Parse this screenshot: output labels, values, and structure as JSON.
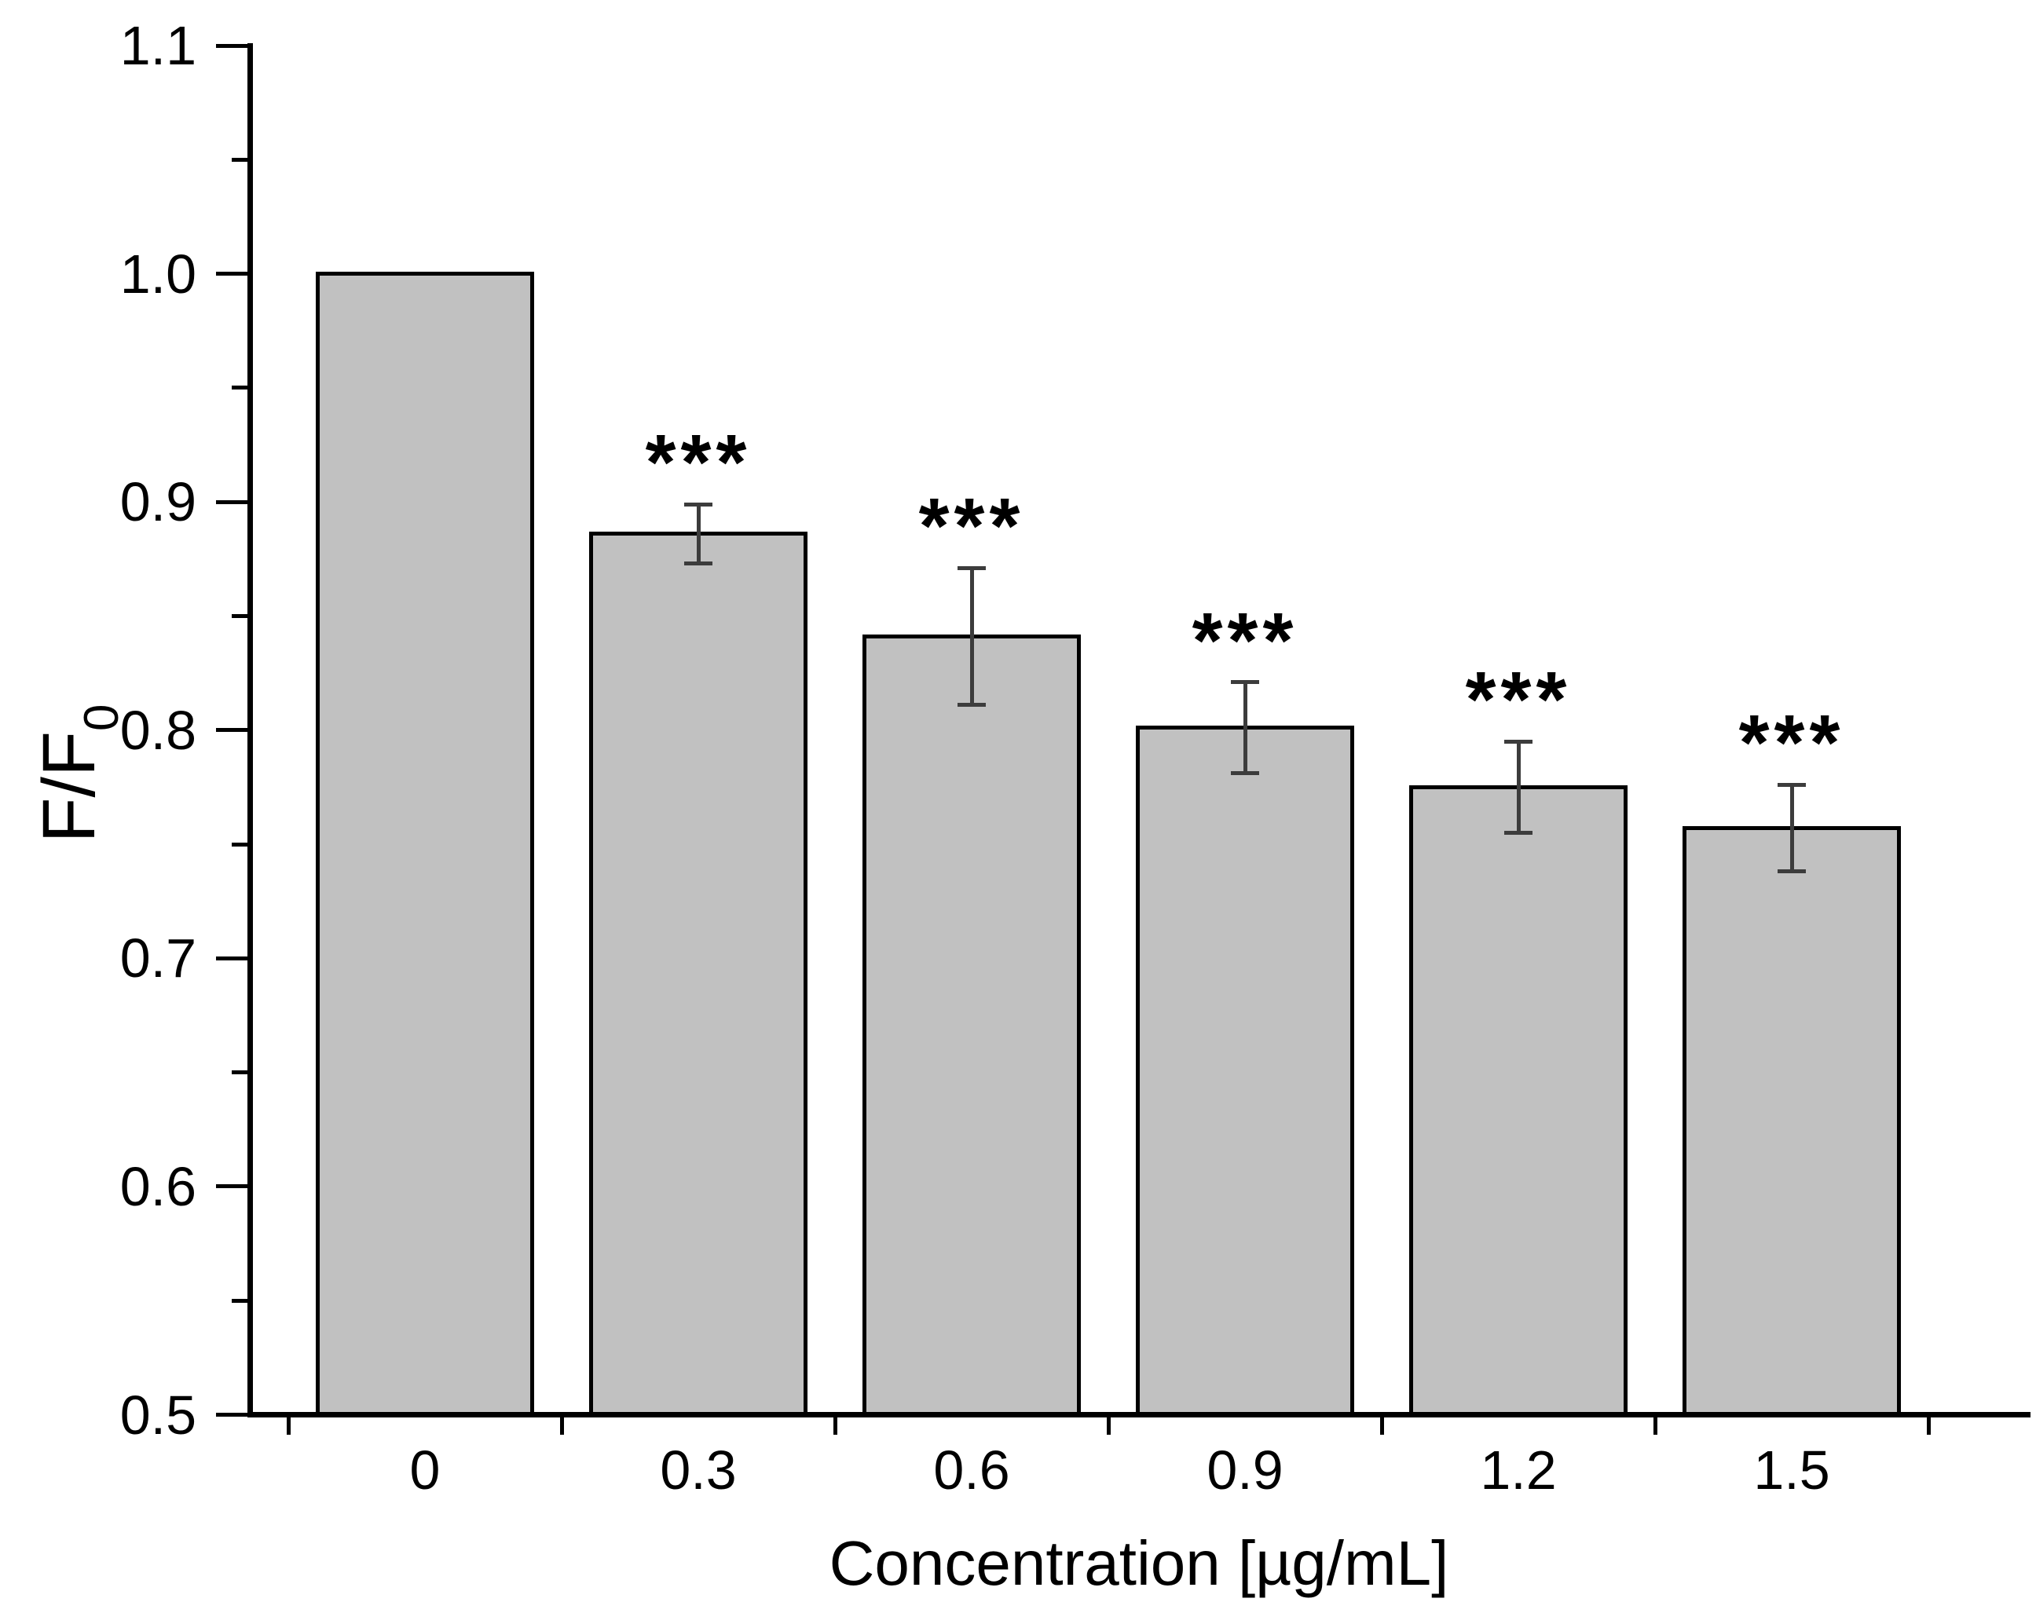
{
  "figure": {
    "background": "#ffffff"
  },
  "chart_data": {
    "type": "bar",
    "title": "",
    "categories": [
      "0",
      "0.3",
      "0.6",
      "0.9",
      "1.2",
      "1.5"
    ],
    "values": [
      1.0,
      0.886,
      0.841,
      0.801,
      0.775,
      0.757
    ],
    "errors": [
      0,
      0.013,
      0.03,
      0.02,
      0.02,
      0.019
    ],
    "significance": [
      "",
      "***",
      "***",
      "***",
      "***",
      "***"
    ],
    "xlabel": "Concentration [µg/mL]",
    "ylabel_main": "F/F",
    "ylabel_sub": "0",
    "ylim": [
      0.5,
      1.1
    ],
    "y_major_ticks": [
      0.5,
      0.6,
      0.7,
      0.8,
      0.9,
      1.0,
      1.1
    ],
    "y_tick_labels": [
      "0.5",
      "0.6",
      "0.7",
      "0.8",
      "0.9",
      "1.0",
      "1.1"
    ],
    "y_minor_step": 0.05,
    "grid": false,
    "legend": null,
    "bar_fill": "#c1c1c1",
    "bar_border": "#000000",
    "error_color": "#3c3c3c",
    "text_color": "#000000"
  }
}
